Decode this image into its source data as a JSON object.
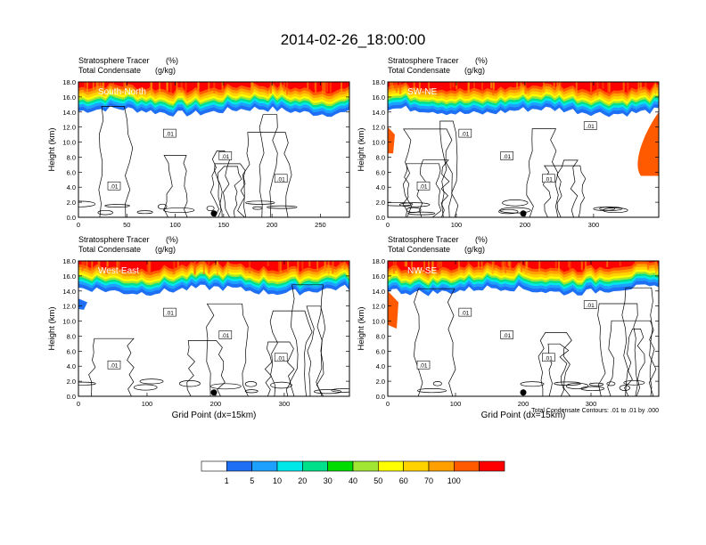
{
  "figure": {
    "title": "2014-02-26_18:00:00",
    "panel_title_left": "Stratosphere Tracer",
    "panel_title_right": "(%)",
    "panel_subtitle_left": "Total Condensate",
    "panel_subtitle_right": "(g/kg)",
    "ylabel": "Height (km)",
    "xlabel": "Grid Point (dx=15km)",
    "contour_note": "Total Condensate Contours: .01 to .01 by .000"
  },
  "colorbar": {
    "colors": [
      "#ffffff",
      "#1e6ff4",
      "#1ea0ff",
      "#00e8e8",
      "#00e08a",
      "#00dc00",
      "#a0e632",
      "#ffff00",
      "#ffd200",
      "#ffa000",
      "#ff5a00",
      "#ff0000"
    ],
    "labels": [
      "1",
      "5",
      "10",
      "20",
      "30",
      "40",
      "50",
      "60",
      "70",
      "100"
    ]
  },
  "chart_data": [
    {
      "type": "heatmap",
      "panel_label": "South-North",
      "x_ticks": [
        0,
        50,
        100,
        150,
        200,
        250
      ],
      "xlim": [
        0,
        280
      ],
      "y_ticks": [
        "0.0",
        "2.0",
        "4.0",
        "6.0",
        "8.0",
        "10.0",
        "12.0",
        "14.0",
        "16.0",
        "18.0"
      ],
      "ylim": [
        0,
        18
      ],
      "contour_labels": [
        ".01",
        ".01",
        ".01",
        ".01"
      ]
    },
    {
      "type": "heatmap",
      "panel_label": "SW-NE",
      "x_ticks": [
        0,
        100,
        200,
        300
      ],
      "xlim": [
        0,
        395
      ],
      "y_ticks": [
        "0.0",
        "2.0",
        "4.0",
        "6.0",
        "8.0",
        "10.0",
        "12.0",
        "14.0",
        "16.0",
        "18.0"
      ],
      "ylim": [
        0,
        18
      ],
      "contour_labels": [
        ".01",
        ".01",
        ".01",
        ".01",
        ".01"
      ]
    },
    {
      "type": "heatmap",
      "panel_label": "West-East",
      "x_ticks": [
        0,
        100,
        200,
        300
      ],
      "xlim": [
        0,
        395
      ],
      "y_ticks": [
        "0.0",
        "2.0",
        "4.0",
        "6.0",
        "8.0",
        "10.0",
        "12.0",
        "14.0",
        "16.0",
        "18.0"
      ],
      "ylim": [
        0,
        18
      ],
      "contour_labels": [
        ".01",
        ".01",
        ".01",
        ".01"
      ]
    },
    {
      "type": "heatmap",
      "panel_label": "NW-SE",
      "x_ticks": [
        0,
        100,
        200,
        300
      ],
      "xlim": [
        0,
        400
      ],
      "y_ticks": [
        "0.0",
        "2.0",
        "4.0",
        "6.0",
        "8.0",
        "10.0",
        "12.0",
        "14.0",
        "16.0",
        "18.0"
      ],
      "ylim": [
        0,
        18
      ],
      "contour_labels": [
        ".01",
        ".01",
        ".01",
        ".01",
        ".01"
      ]
    }
  ]
}
